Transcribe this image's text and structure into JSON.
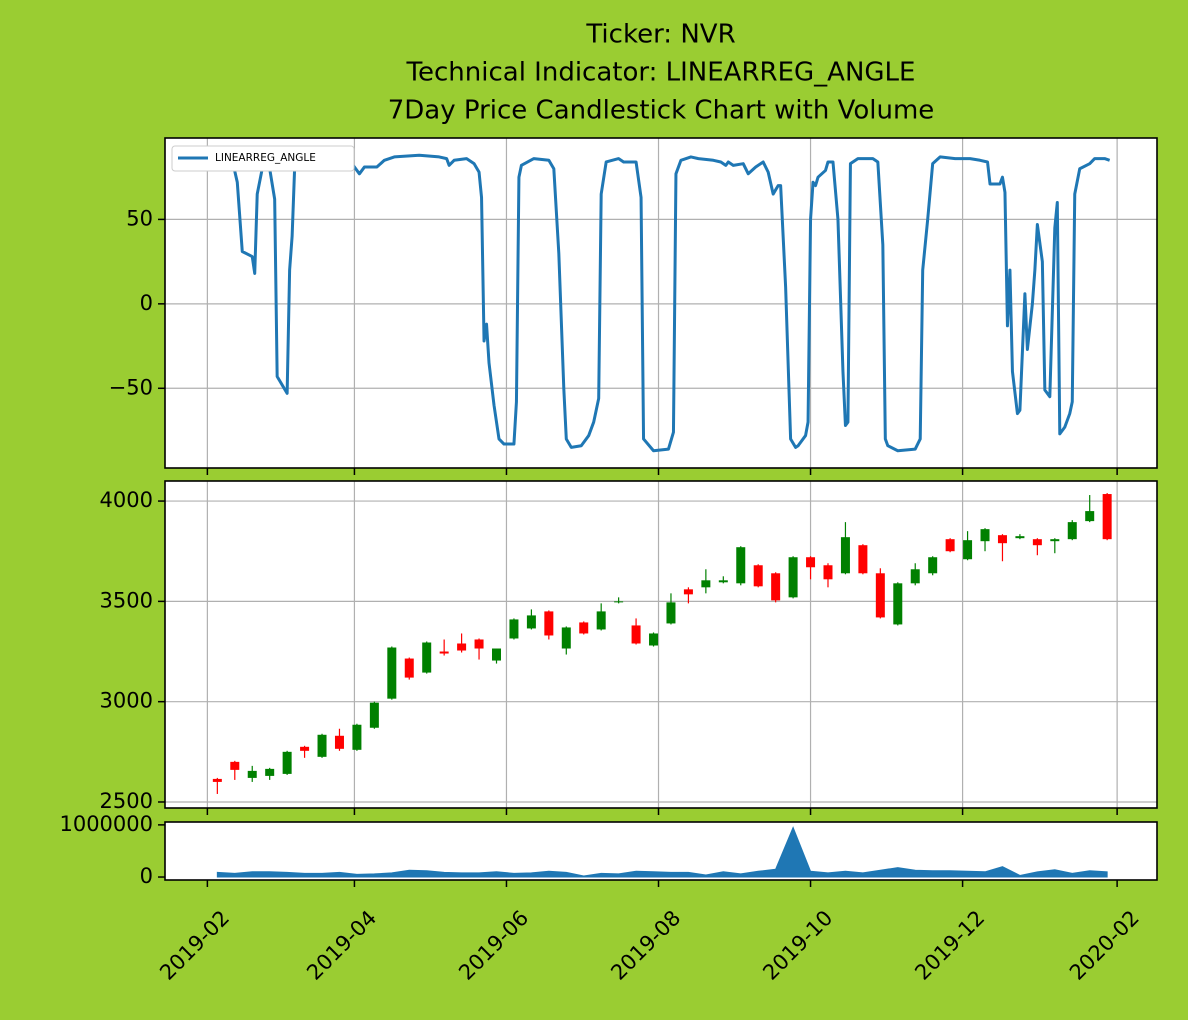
{
  "chart_data": [
    {
      "type": "line",
      "title": [
        "Ticker: NVR",
        "Technical Indicator: LINEARREG_ANGLE",
        "7Day Price Candlestick Chart with Volume"
      ],
      "x": [
        17915,
        17938,
        17940,
        17942,
        17946,
        17947,
        17948,
        17950,
        17953,
        17955,
        17956,
        17960,
        17961,
        17962,
        17963,
        17965,
        17985,
        17989,
        17991,
        17996,
        17999,
        18003,
        18013,
        18021,
        18024,
        18025,
        18027,
        18032,
        18035,
        18037,
        18038,
        18039,
        18040,
        18041,
        18043,
        18045,
        18047,
        18051,
        18052,
        18053,
        18054,
        18059,
        18065,
        18067,
        18069,
        18071,
        18072,
        18074,
        18078,
        18081,
        18083,
        18085,
        18086,
        18088,
        18093,
        18095,
        18100,
        18102,
        18103,
        18107,
        18113,
        18115,
        18116,
        18118,
        18122,
        18125,
        18131,
        18134,
        18136,
        18137,
        18139,
        18143,
        18145,
        18148,
        18151,
        18153,
        18155,
        18157,
        18158,
        18160,
        18162,
        18164,
        18165,
        18168,
        18169,
        18170,
        18171,
        18172,
        18173,
        18176,
        18177,
        18179,
        18181,
        18183,
        18184,
        18185,
        18186,
        18189,
        18195,
        18197,
        18199,
        18200,
        18201,
        18205,
        18212,
        18214,
        18215,
        18217,
        18219,
        18222,
        18228,
        18234,
        18238,
        18241,
        18242,
        18246,
        18247,
        18248,
        18249,
        18250,
        18251,
        18253,
        18254,
        18256,
        18257,
        18259,
        18260,
        18261,
        18263,
        18264,
        18266,
        18268,
        18269,
        18270,
        18272,
        18274,
        18275,
        18276,
        18278,
        18282,
        18284,
        18288,
        18290
      ],
      "series": [
        {
          "name": "LINEARREG_ANGLE",
          "color": "#1f77b4",
          "values": [
            86,
            85,
            72,
            31,
            28,
            18,
            65,
            80,
            80,
            62,
            -43,
            -53,
            20,
            40,
            80,
            86,
            85,
            77,
            81,
            81,
            85,
            87,
            88,
            87,
            86,
            82,
            85,
            86,
            83,
            78,
            63,
            -22,
            -12,
            -35,
            -60,
            -80,
            -83,
            -83,
            -58,
            75,
            82,
            86,
            85,
            80,
            30,
            -50,
            -80,
            -85,
            -84,
            -78,
            -70,
            -56,
            65,
            84,
            86,
            84,
            84,
            63,
            -80,
            -87,
            -86,
            -76,
            77,
            85,
            87,
            86,
            85,
            84,
            82,
            84,
            82,
            83,
            77,
            81,
            84,
            78,
            65,
            70,
            70,
            10,
            -80,
            -85,
            -84,
            -78,
            -70,
            50,
            72,
            70,
            75,
            79,
            84,
            84,
            50,
            -40,
            -72,
            -70,
            83,
            86,
            86,
            84,
            35,
            -80,
            -84,
            -87,
            -86,
            -80,
            20,
            50,
            83,
            87,
            86,
            86,
            85,
            84,
            71,
            71,
            75,
            66,
            -13,
            20,
            -40,
            -65,
            -63,
            6,
            -27,
            0,
            20,
            47,
            25,
            -51,
            -55,
            45,
            60,
            -77,
            -73,
            -65,
            -58,
            65,
            80,
            83,
            86,
            86,
            85
          ]
        }
      ],
      "xlim": [
        17911,
        18309
      ],
      "xticks": [
        17928,
        17987,
        18048,
        18109,
        18170,
        18231,
        18293
      ],
      "ylim": [
        -97.2,
        98.2
      ],
      "yticks": [
        {
          "value": -50,
          "label": "−50"
        },
        0,
        50
      ],
      "grid": true,
      "legend": "upper left"
    },
    {
      "type": "candlestick",
      "x": [
        17932,
        17939,
        17946,
        17953,
        17960,
        17967,
        17974,
        17981,
        17988,
        17995,
        18002,
        18009,
        18016,
        18023,
        18030,
        18037,
        18044,
        18051,
        18058,
        18065,
        18072,
        18079,
        18086,
        18093,
        18100,
        18107,
        18114,
        18121,
        18128,
        18135,
        18142,
        18149,
        18156,
        18163,
        18170,
        18177,
        18184,
        18191,
        18198,
        18205,
        18212,
        18219,
        18226,
        18233,
        18240,
        18247,
        18254,
        18261,
        18268,
        18275,
        18282,
        18289
      ],
      "open": [
        2615,
        2700,
        2620,
        2630,
        2640,
        2775,
        2725,
        2830,
        2760,
        2870,
        3015,
        3215,
        3145,
        3250,
        3290,
        3310,
        3205,
        3315,
        3365,
        3450,
        3265,
        3395,
        3360,
        3495,
        3380,
        3280,
        3390,
        3560,
        3570,
        3595,
        3590,
        3680,
        3640,
        3520,
        3720,
        3680,
        3640,
        3780,
        3640,
        3385,
        3590,
        3640,
        3810,
        3710,
        3800,
        3830,
        3815,
        3810,
        3800,
        3810,
        3900,
        4035
      ],
      "high": [
        2620,
        2705,
        2680,
        2670,
        2755,
        2780,
        2840,
        2865,
        2890,
        3000,
        3275,
        3220,
        3300,
        3310,
        3340,
        3315,
        3265,
        3415,
        3460,
        3455,
        3375,
        3400,
        3490,
        3520,
        3415,
        3345,
        3540,
        3570,
        3660,
        3625,
        3775,
        3685,
        3645,
        3725,
        3725,
        3690,
        3895,
        3785,
        3665,
        3595,
        3690,
        3725,
        3815,
        3850,
        3865,
        3835,
        3835,
        3815,
        3815,
        3905,
        4030,
        4040
      ],
      "low": [
        2540,
        2610,
        2600,
        2610,
        2635,
        2720,
        2720,
        2755,
        2755,
        2865,
        3010,
        3110,
        3140,
        3230,
        3245,
        3210,
        3190,
        3310,
        3360,
        3310,
        3235,
        3335,
        3355,
        3490,
        3285,
        3275,
        3385,
        3490,
        3540,
        3590,
        3580,
        3570,
        3495,
        3515,
        3610,
        3570,
        3635,
        3635,
        3415,
        3380,
        3580,
        3630,
        3745,
        3705,
        3750,
        3700,
        3810,
        3730,
        3740,
        3805,
        3895,
        3805
      ],
      "close": [
        2600,
        2660,
        2655,
        2665,
        2750,
        2755,
        2835,
        2765,
        2885,
        2995,
        3270,
        3120,
        3295,
        3240,
        3255,
        3265,
        3265,
        3410,
        3430,
        3330,
        3370,
        3340,
        3450,
        3500,
        3290,
        3340,
        3495,
        3535,
        3605,
        3605,
        3770,
        3575,
        3505,
        3720,
        3670,
        3610,
        3820,
        3640,
        3420,
        3590,
        3660,
        3720,
        3750,
        3805,
        3860,
        3790,
        3825,
        3780,
        3810,
        3895,
        3950,
        3810
      ],
      "up_color": "green",
      "down_color": "red",
      "xlim": [
        17911,
        18309
      ],
      "xticks": [
        17928,
        17987,
        18048,
        18109,
        18170,
        18231,
        18293
      ],
      "ylim": [
        2470,
        4100
      ],
      "yticks": [
        2500,
        3000,
        3500,
        4000
      ],
      "grid": true
    },
    {
      "type": "area",
      "x": [
        17932,
        17939,
        17946,
        17953,
        17960,
        17967,
        17974,
        17981,
        17988,
        17995,
        18002,
        18009,
        18016,
        18023,
        18030,
        18037,
        18044,
        18051,
        18058,
        18065,
        18072,
        18079,
        18086,
        18093,
        18100,
        18107,
        18114,
        18121,
        18128,
        18135,
        18142,
        18149,
        18156,
        18163,
        18170,
        18177,
        18184,
        18191,
        18198,
        18205,
        18212,
        18219,
        18226,
        18233,
        18240,
        18247,
        18254,
        18261,
        18268,
        18275,
        18282,
        18289
      ],
      "values": [
        90000,
        70000,
        100000,
        100000,
        90000,
        70000,
        70000,
        90000,
        50000,
        60000,
        80000,
        130000,
        120000,
        90000,
        80000,
        80000,
        100000,
        70000,
        80000,
        110000,
        90000,
        20000,
        70000,
        60000,
        110000,
        100000,
        90000,
        90000,
        40000,
        100000,
        60000,
        110000,
        150000,
        950000,
        110000,
        80000,
        110000,
        80000,
        130000,
        180000,
        130000,
        120000,
        120000,
        110000,
        100000,
        200000,
        30000,
        100000,
        140000,
        70000,
        120000,
        100000
      ],
      "color": "#1f77b4",
      "xlim": [
        17911,
        18309
      ],
      "xticks": [
        {
          "value": 17928,
          "label": "2019-02"
        },
        {
          "value": 17987,
          "label": "2019-04"
        },
        {
          "value": 18048,
          "label": "2019-06"
        },
        {
          "value": 18109,
          "label": "2019-08"
        },
        {
          "value": 18170,
          "label": "2019-10"
        },
        {
          "value": 18231,
          "label": "2019-12"
        },
        {
          "value": 18293,
          "label": "2020-02"
        }
      ],
      "ylim": [
        -57000,
        1055000
      ],
      "yticks": [
        0,
        1000000
      ],
      "grid": false
    }
  ]
}
